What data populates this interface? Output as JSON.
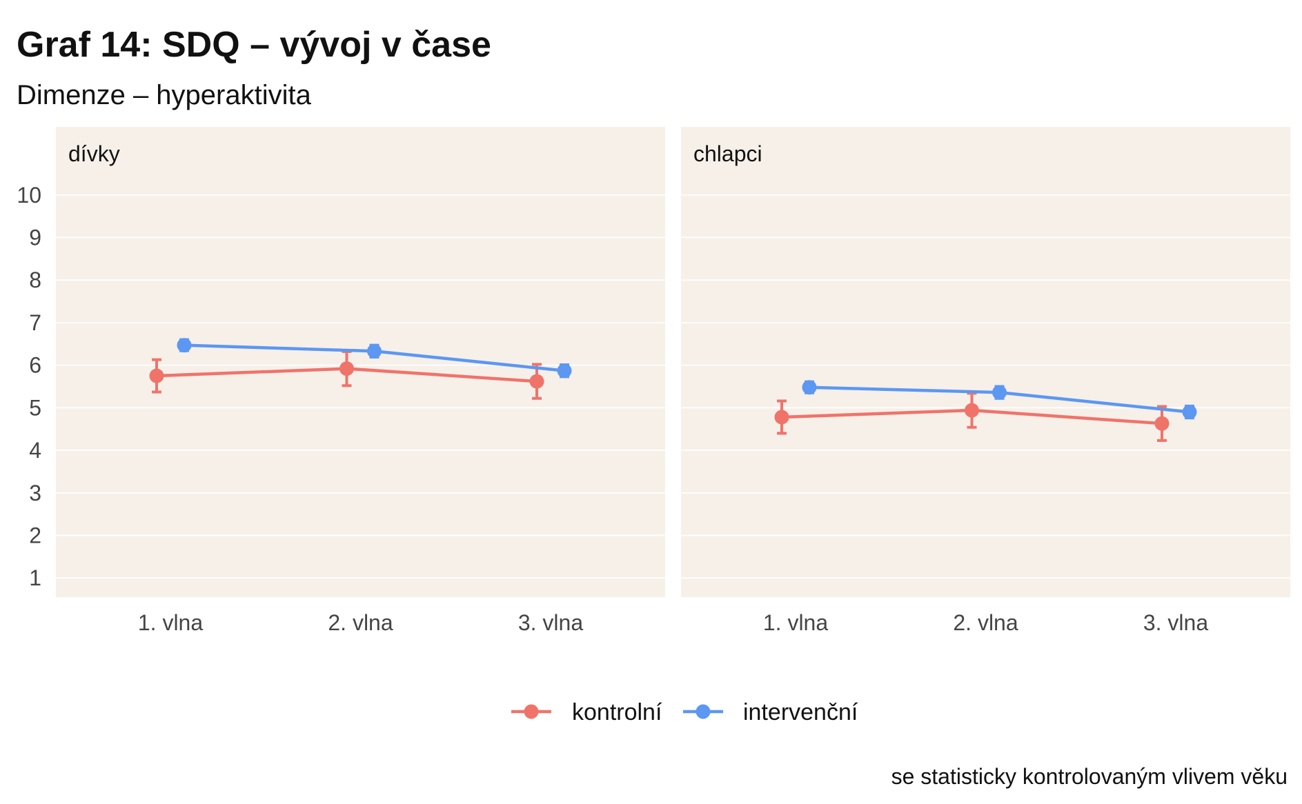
{
  "chart_data": {
    "type": "line",
    "title": "Graf 14: SDQ – vývoj v čase",
    "subtitle": "Dimenze – hyperaktivita",
    "caption": "se statisticky kontrolovaným vlivem věku",
    "categories": [
      "1. vlna",
      "2. vlna",
      "3. vlna"
    ],
    "y_ticks": [
      1,
      2,
      3,
      4,
      5,
      6,
      7,
      8,
      9,
      10
    ],
    "ylim": [
      0.55,
      11.6
    ],
    "grid": true,
    "legend_position": "bottom",
    "series_styles": [
      {
        "name": "kontrolní",
        "color": "#F0736A"
      },
      {
        "name": "intervenční",
        "color": "#5C97F2"
      }
    ],
    "panels": [
      {
        "label": "dívky",
        "series": [
          {
            "name": "kontrolní",
            "values": [
              5.75,
              5.92,
              5.62
            ],
            "lower": [
              5.37,
              5.52,
              5.22
            ],
            "upper": [
              6.13,
              6.32,
              6.02
            ]
          },
          {
            "name": "intervenční",
            "values": [
              6.47,
              6.33,
              5.87
            ],
            "lower": [
              6.34,
              6.19,
              5.73
            ],
            "upper": [
              6.6,
              6.47,
              6.01
            ]
          }
        ]
      },
      {
        "label": "chlapci",
        "series": [
          {
            "name": "kontrolní",
            "values": [
              4.78,
              4.94,
              4.63
            ],
            "lower": [
              4.4,
              4.54,
              4.23
            ],
            "upper": [
              5.16,
              5.34,
              5.03
            ]
          },
          {
            "name": "intervenční",
            "values": [
              5.48,
              5.36,
              4.9
            ],
            "lower": [
              5.35,
              5.22,
              4.76
            ],
            "upper": [
              5.61,
              5.5,
              5.04
            ]
          }
        ]
      }
    ]
  }
}
